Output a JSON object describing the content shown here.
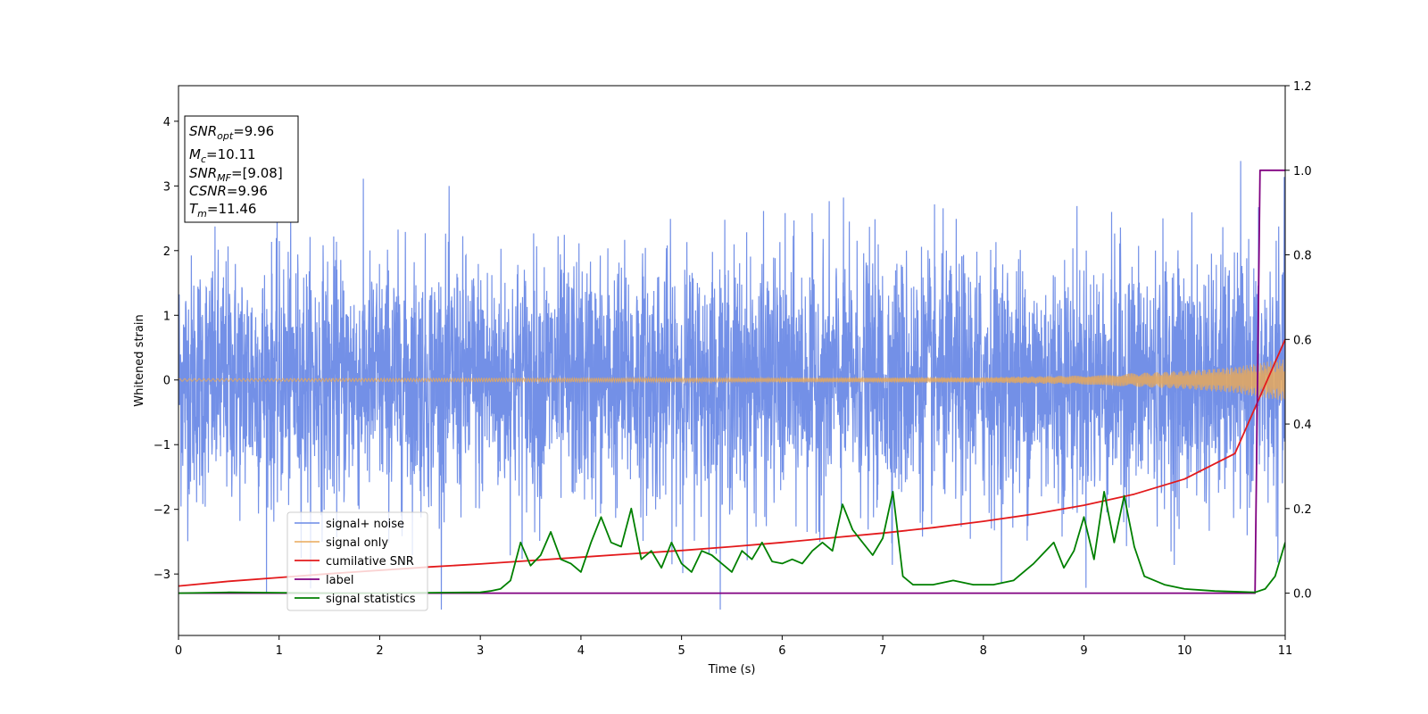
{
  "chart_data": {
    "type": "line",
    "xlabel": "Time (s)",
    "ylabel": "Whitened strain",
    "xlim": [
      0,
      11
    ],
    "ylim_left": [
      -3.95,
      4.55
    ],
    "ylim_right": [
      -0.1,
      1.2
    ],
    "x_ticks": [
      0,
      1,
      2,
      3,
      4,
      5,
      6,
      7,
      8,
      9,
      10,
      11
    ],
    "x_tick_labels": [
      "0",
      "1",
      "2",
      "3",
      "4",
      "5",
      "6",
      "7",
      "8",
      "9",
      "10",
      "11"
    ],
    "y_left_ticks": [
      -3,
      -2,
      -1,
      0,
      1,
      2,
      3,
      4
    ],
    "y_left_tick_labels": [
      "−3",
      "−2",
      "−1",
      "0",
      "1",
      "2",
      "3",
      "4"
    ],
    "y_right_ticks": [
      0.0,
      0.2,
      0.4,
      0.6,
      0.8,
      1.0,
      1.2
    ],
    "y_right_tick_labels": [
      "0.0",
      "0.2",
      "0.4",
      "0.6",
      "0.8",
      "1.0",
      "1.2"
    ],
    "grid": false,
    "legend_position": "lower-left",
    "info_box": [
      {
        "name": "SNR",
        "sub": "opt",
        "value": "=9.96"
      },
      {
        "name": "M",
        "sub": "c",
        "value": "=10.11"
      },
      {
        "name": "SNR",
        "sub": "MF",
        "value": "=[9.08]"
      },
      {
        "name": "CSNR",
        "sub": "",
        "value": "=9.96"
      },
      {
        "name": "T",
        "sub": "m",
        "value": "=11.46"
      }
    ],
    "series": [
      {
        "name": "signal+ noise",
        "axis": "left",
        "color": "#6b8ae6",
        "description_values": {
          "typical_min": -1.6,
          "typical_max": 1.6,
          "peak_max": 4.17,
          "peak_min": -3.55
        }
      },
      {
        "name": "signal only",
        "axis": "left",
        "color": "#e8a95a",
        "amplitude_points": {
          "x": [
            0,
            8,
            9,
            10,
            10.5,
            11
          ],
          "y": [
            0.02,
            0.04,
            0.07,
            0.14,
            0.2,
            0.33
          ]
        }
      },
      {
        "name": "cumilative SNR",
        "axis": "right",
        "color": "#e31a1c",
        "x": [
          0,
          0.5,
          1,
          1.5,
          2,
          2.5,
          3,
          3.5,
          4,
          4.5,
          5,
          5.5,
          6,
          6.5,
          7,
          7.5,
          8,
          8.5,
          9,
          9.5,
          10,
          10.5,
          11
        ],
        "y": [
          0.017,
          0.028,
          0.037,
          0.046,
          0.054,
          0.062,
          0.069,
          0.077,
          0.085,
          0.093,
          0.101,
          0.11,
          0.12,
          0.131,
          0.142,
          0.155,
          0.17,
          0.187,
          0.208,
          0.234,
          0.27,
          0.33,
          0.6
        ]
      },
      {
        "name": "label",
        "axis": "right",
        "color": "#800080",
        "x": [
          0,
          10.7,
          10.75,
          11
        ],
        "y": [
          0,
          0,
          1,
          1
        ]
      },
      {
        "name": "signal statistics",
        "axis": "right",
        "color": "#008000",
        "x": [
          0,
          0.5,
          1,
          1.5,
          2,
          2.5,
          3,
          3.1,
          3.2,
          3.3,
          3.4,
          3.5,
          3.6,
          3.7,
          3.8,
          3.9,
          4.0,
          4.1,
          4.2,
          4.3,
          4.4,
          4.5,
          4.6,
          4.7,
          4.8,
          4.9,
          5.0,
          5.1,
          5.2,
          5.3,
          5.4,
          5.5,
          5.6,
          5.7,
          5.8,
          5.9,
          6.0,
          6.1,
          6.2,
          6.3,
          6.4,
          6.5,
          6.6,
          6.7,
          6.8,
          6.9,
          7.0,
          7.1,
          7.2,
          7.3,
          7.5,
          7.7,
          7.9,
          8.1,
          8.3,
          8.5,
          8.7,
          8.8,
          8.9,
          9.0,
          9.1,
          9.2,
          9.3,
          9.4,
          9.5,
          9.6,
          9.8,
          10.0,
          10.3,
          10.7,
          10.8,
          10.9,
          11.0
        ],
        "y": [
          0.0,
          0.002,
          0.001,
          0.0,
          0.0,
          0.001,
          0.002,
          0.005,
          0.01,
          0.03,
          0.12,
          0.065,
          0.09,
          0.145,
          0.08,
          0.07,
          0.05,
          0.12,
          0.18,
          0.12,
          0.11,
          0.2,
          0.08,
          0.1,
          0.06,
          0.12,
          0.07,
          0.05,
          0.1,
          0.09,
          0.07,
          0.05,
          0.1,
          0.08,
          0.12,
          0.075,
          0.07,
          0.08,
          0.07,
          0.1,
          0.12,
          0.1,
          0.21,
          0.15,
          0.12,
          0.09,
          0.13,
          0.24,
          0.04,
          0.02,
          0.02,
          0.03,
          0.02,
          0.02,
          0.03,
          0.07,
          0.12,
          0.06,
          0.1,
          0.18,
          0.08,
          0.24,
          0.12,
          0.23,
          0.11,
          0.04,
          0.02,
          0.01,
          0.005,
          0.002,
          0.01,
          0.04,
          0.12
        ]
      }
    ]
  }
}
